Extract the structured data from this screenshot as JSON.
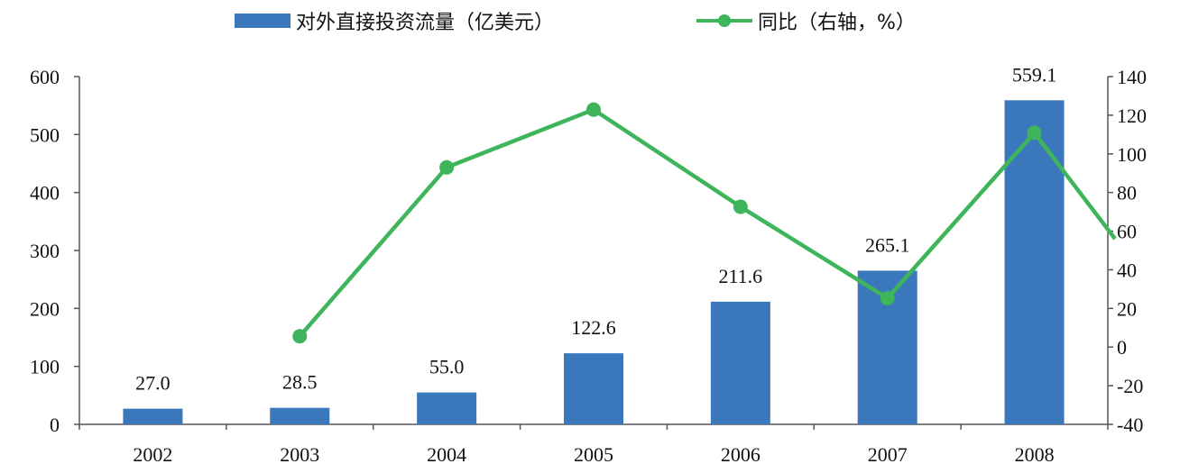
{
  "chart_data": {
    "type": "bar",
    "categories": [
      "2002",
      "2003",
      "2004",
      "2005",
      "2006",
      "2007",
      "2008"
    ],
    "series": [
      {
        "name": "对外直接投资流量（亿美元）",
        "type": "bar",
        "axis": "left",
        "values": [
          27.0,
          28.5,
          55.0,
          122.6,
          211.6,
          265.1,
          559.1
        ],
        "labels": [
          "27.0",
          "28.5",
          "55.0",
          "122.6",
          "211.6",
          "265.1",
          "559.1"
        ],
        "color": "#3a78bb"
      },
      {
        "name": "同比（右轴，%）",
        "type": "line",
        "axis": "right",
        "values": [
          null,
          5.6,
          93.0,
          122.9,
          72.6,
          25.3,
          110.9
        ],
        "trailing_value": 56,
        "color": "#3eb55a"
      }
    ],
    "left_axis": {
      "ylim": [
        0,
        600
      ],
      "ticks": [
        "0",
        "100",
        "200",
        "300",
        "400",
        "500",
        "600"
      ]
    },
    "right_axis": {
      "ylim": [
        -40,
        140
      ],
      "ticks": [
        "-40",
        "-20",
        "0",
        "20",
        "40",
        "60",
        "80",
        "100",
        "120",
        "140"
      ]
    },
    "legend_position": "top"
  }
}
